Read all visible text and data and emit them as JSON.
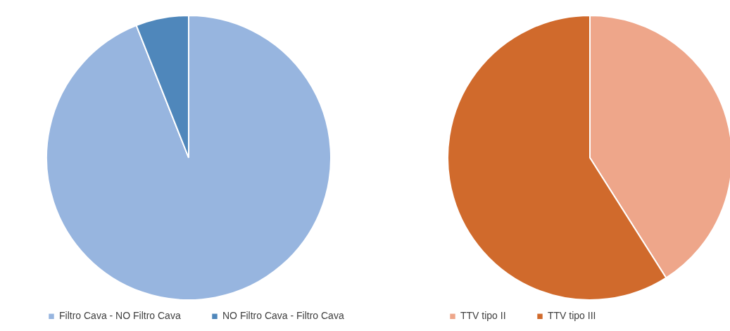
{
  "chart_data": [
    {
      "type": "pie",
      "categories": [
        "Filtro Cava - NO Filtro Cava",
        "NO Filtro Cava - Filtro Cava"
      ],
      "values": [
        94,
        6
      ],
      "colors": [
        "#97b5df",
        "#4f87bb"
      ],
      "legend": "bottom"
    },
    {
      "type": "pie",
      "categories": [
        "TTV tipo II",
        "TTV tipo III"
      ],
      "values": [
        41,
        59
      ],
      "colors": [
        "#eea68a",
        "#d06a2c"
      ],
      "legend": "bottom"
    }
  ]
}
